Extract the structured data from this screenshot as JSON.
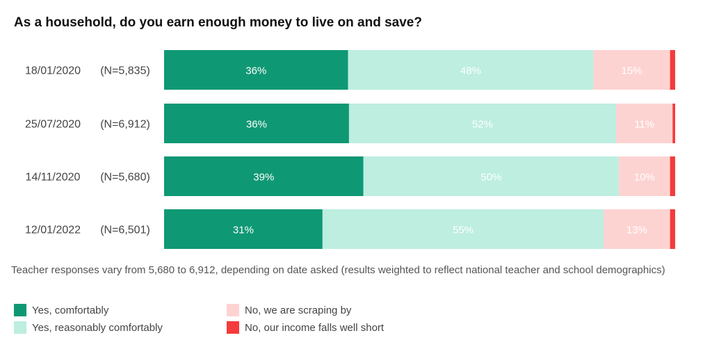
{
  "chart_data": {
    "type": "bar",
    "orientation": "horizontal",
    "stacked": true,
    "title": "As a household, do you earn enough money to live on and save?",
    "categories": [
      "18/01/2020",
      "25/07/2020",
      "14/11/2020",
      "12/01/2022"
    ],
    "sample_sizes": [
      "(N=5,835)",
      "(N=6,912)",
      "(N=5,680)",
      "(N=6,501)"
    ],
    "series": [
      {
        "name": "Yes, comfortably",
        "color": "#0f9874",
        "label_color": "#ffffff",
        "values": [
          36,
          36,
          39,
          31
        ],
        "labels": [
          "36%",
          "36%",
          "39%",
          "31%"
        ]
      },
      {
        "name": "Yes, reasonably comfortably",
        "color": "#bdeee0",
        "label_color": "#ffffff",
        "values": [
          48,
          52,
          50,
          55
        ],
        "labels": [
          "48%",
          "52%",
          "50%",
          "55%"
        ]
      },
      {
        "name": "No, we are scraping by",
        "color": "#fdd3d2",
        "label_color": "#ffffff",
        "values": [
          15,
          11,
          10,
          13
        ],
        "labels": [
          "15%",
          "11%",
          "10%",
          "13%"
        ]
      },
      {
        "name": "No, our income falls well short",
        "color": "#f53b3b",
        "label_color": "#ffffff",
        "values": [
          1,
          0.5,
          1,
          1
        ],
        "labels": [
          "",
          "",
          "",
          ""
        ]
      }
    ],
    "xlim": [
      0,
      100
    ],
    "note": "Teacher responses vary from 5,680 to 6,912, depending on date asked (results weighted to reflect national teacher and school demographics)",
    "legend_position": "bottom"
  }
}
